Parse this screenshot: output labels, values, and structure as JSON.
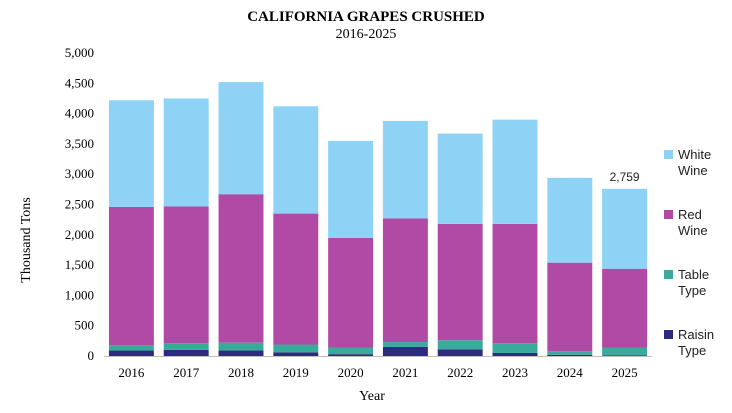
{
  "chart_data": {
    "type": "bar",
    "stacked": true,
    "title": "CALIFORNIA GRAPES CRUSHED",
    "subtitle": "2016-2025",
    "xlabel": "Year",
    "ylabel": "Thousand Tons",
    "ylim": [
      0,
      5000
    ],
    "ytick_labels": [
      "0",
      "500",
      "1,000",
      "1,500",
      "2,000",
      "2,500",
      "3,000",
      "3,500",
      "4,000",
      "4,500",
      "5,000"
    ],
    "ytick_values": [
      0,
      500,
      1000,
      1500,
      2000,
      2500,
      3000,
      3500,
      4000,
      4500,
      5000
    ],
    "grid": false,
    "legend_position": "right",
    "categories": [
      "2016",
      "2017",
      "2018",
      "2019",
      "2020",
      "2021",
      "2022",
      "2023",
      "2024",
      "2025"
    ],
    "series": [
      {
        "name": "Raisin Type",
        "legend_lines": [
          "Raisin",
          "Type"
        ],
        "color": "#2e2a80",
        "values": [
          90,
          100,
          90,
          60,
          30,
          150,
          110,
          50,
          20,
          10
        ]
      },
      {
        "name": "Table Type",
        "legend_lines": [
          "Table",
          "Type"
        ],
        "color": "#3aab9a",
        "values": [
          90,
          110,
          130,
          130,
          110,
          80,
          150,
          160,
          60,
          130
        ]
      },
      {
        "name": "Red Wine",
        "legend_lines": [
          "Red",
          "Wine"
        ],
        "color": "#b04aa4",
        "values": [
          2280,
          2260,
          2450,
          2160,
          1810,
          2040,
          1920,
          1970,
          1460,
          1300
        ]
      },
      {
        "name": "White Wine",
        "legend_lines": [
          "White",
          "Wine"
        ],
        "color": "#8ed3f5",
        "values": [
          1760,
          1780,
          1850,
          1770,
          1600,
          1610,
          1490,
          1720,
          1400,
          1319
        ]
      }
    ],
    "annotations": [
      {
        "category": "2025",
        "text": "2,759"
      }
    ]
  }
}
